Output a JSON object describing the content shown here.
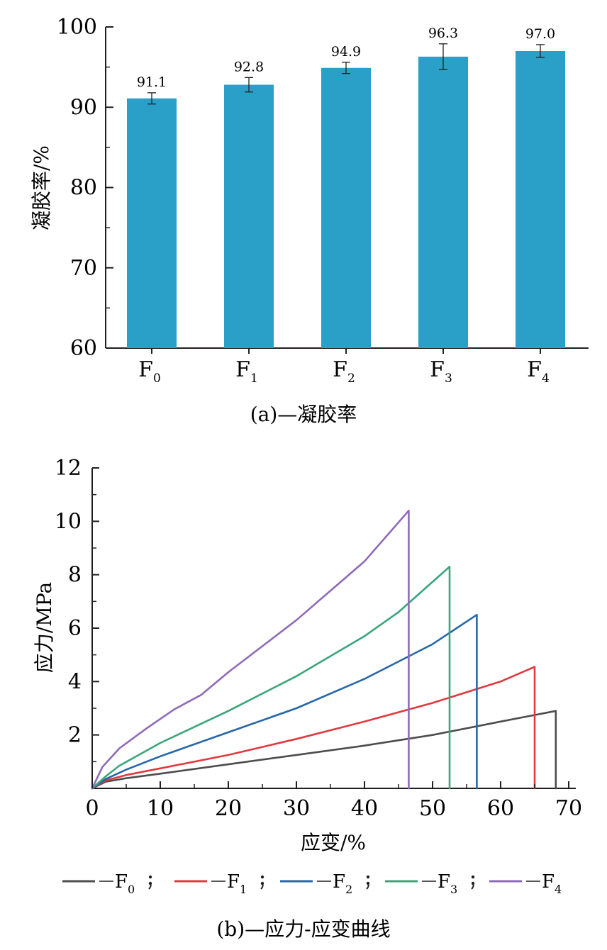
{
  "chart_data": [
    {
      "type": "bar",
      "categories": [
        {
          "base": "F",
          "sub": "0"
        },
        {
          "base": "F",
          "sub": "1"
        },
        {
          "base": "F",
          "sub": "2"
        },
        {
          "base": "F",
          "sub": "3"
        },
        {
          "base": "F",
          "sub": "4"
        }
      ],
      "values": [
        91.1,
        92.8,
        94.9,
        96.3,
        97.0
      ],
      "labels": [
        "91.1",
        "92.8",
        "94.9",
        "96.3",
        "97.0"
      ],
      "errors": [
        0.7,
        0.9,
        0.7,
        1.6,
        0.8
      ],
      "ylabel": "凝胶率/%",
      "ylim": [
        60,
        100
      ],
      "yticks": [
        "60",
        "70",
        "80",
        "90",
        "100"
      ],
      "caption": "(a)—凝胶率",
      "bar_color": "#2aa0c8",
      "grid": false
    },
    {
      "type": "line",
      "xlabel": "应变/%",
      "ylabel": "应力/MPa",
      "xlim": [
        0,
        70
      ],
      "ylim": [
        0,
        12
      ],
      "xticks": [
        "0",
        "10",
        "20",
        "30",
        "40",
        "50",
        "60",
        "70"
      ],
      "yticks": [
        "2",
        "4",
        "6",
        "8",
        "10",
        "12"
      ],
      "caption": "(b)—应力-应变曲线",
      "grid": false,
      "series": [
        {
          "name": {
            "base": "F",
            "sub": "0"
          },
          "color": "#4d4d4d",
          "x": [
            0,
            2,
            5,
            10,
            20,
            30,
            40,
            50,
            60,
            68.1,
            68.1
          ],
          "y": [
            0,
            0.25,
            0.38,
            0.55,
            0.9,
            1.25,
            1.6,
            2.0,
            2.5,
            2.9,
            0
          ]
        },
        {
          "name": {
            "base": "F",
            "sub": "1"
          },
          "color": "#e0393e",
          "x": [
            0,
            2,
            5,
            10,
            20,
            30,
            40,
            50,
            60,
            65.0,
            65.0
          ],
          "y": [
            0,
            0.3,
            0.5,
            0.75,
            1.25,
            1.85,
            2.5,
            3.2,
            4.0,
            4.55,
            0
          ]
        },
        {
          "name": {
            "base": "F",
            "sub": "2"
          },
          "color": "#2866a8",
          "x": [
            0,
            2,
            5,
            10,
            20,
            30,
            40,
            50,
            56.5,
            56.5
          ],
          "y": [
            0,
            0.35,
            0.7,
            1.2,
            2.1,
            3.0,
            4.1,
            5.4,
            6.5,
            0
          ]
        },
        {
          "name": {
            "base": "F",
            "sub": "3"
          },
          "color": "#3aa57a",
          "x": [
            0,
            2,
            4,
            10,
            20,
            30,
            40,
            45,
            52.5,
            52.5
          ],
          "y": [
            0,
            0.45,
            0.85,
            1.7,
            2.9,
            4.2,
            5.7,
            6.6,
            8.3,
            0
          ]
        },
        {
          "name": {
            "base": "F",
            "sub": "4"
          },
          "color": "#8e6bb8",
          "x": [
            0,
            1.5,
            4,
            8,
            12,
            16,
            20,
            30,
            40,
            46.5,
            46.5
          ],
          "y": [
            0,
            0.8,
            1.5,
            2.25,
            2.95,
            3.5,
            4.35,
            6.3,
            8.5,
            10.4,
            0
          ]
        }
      ]
    }
  ]
}
